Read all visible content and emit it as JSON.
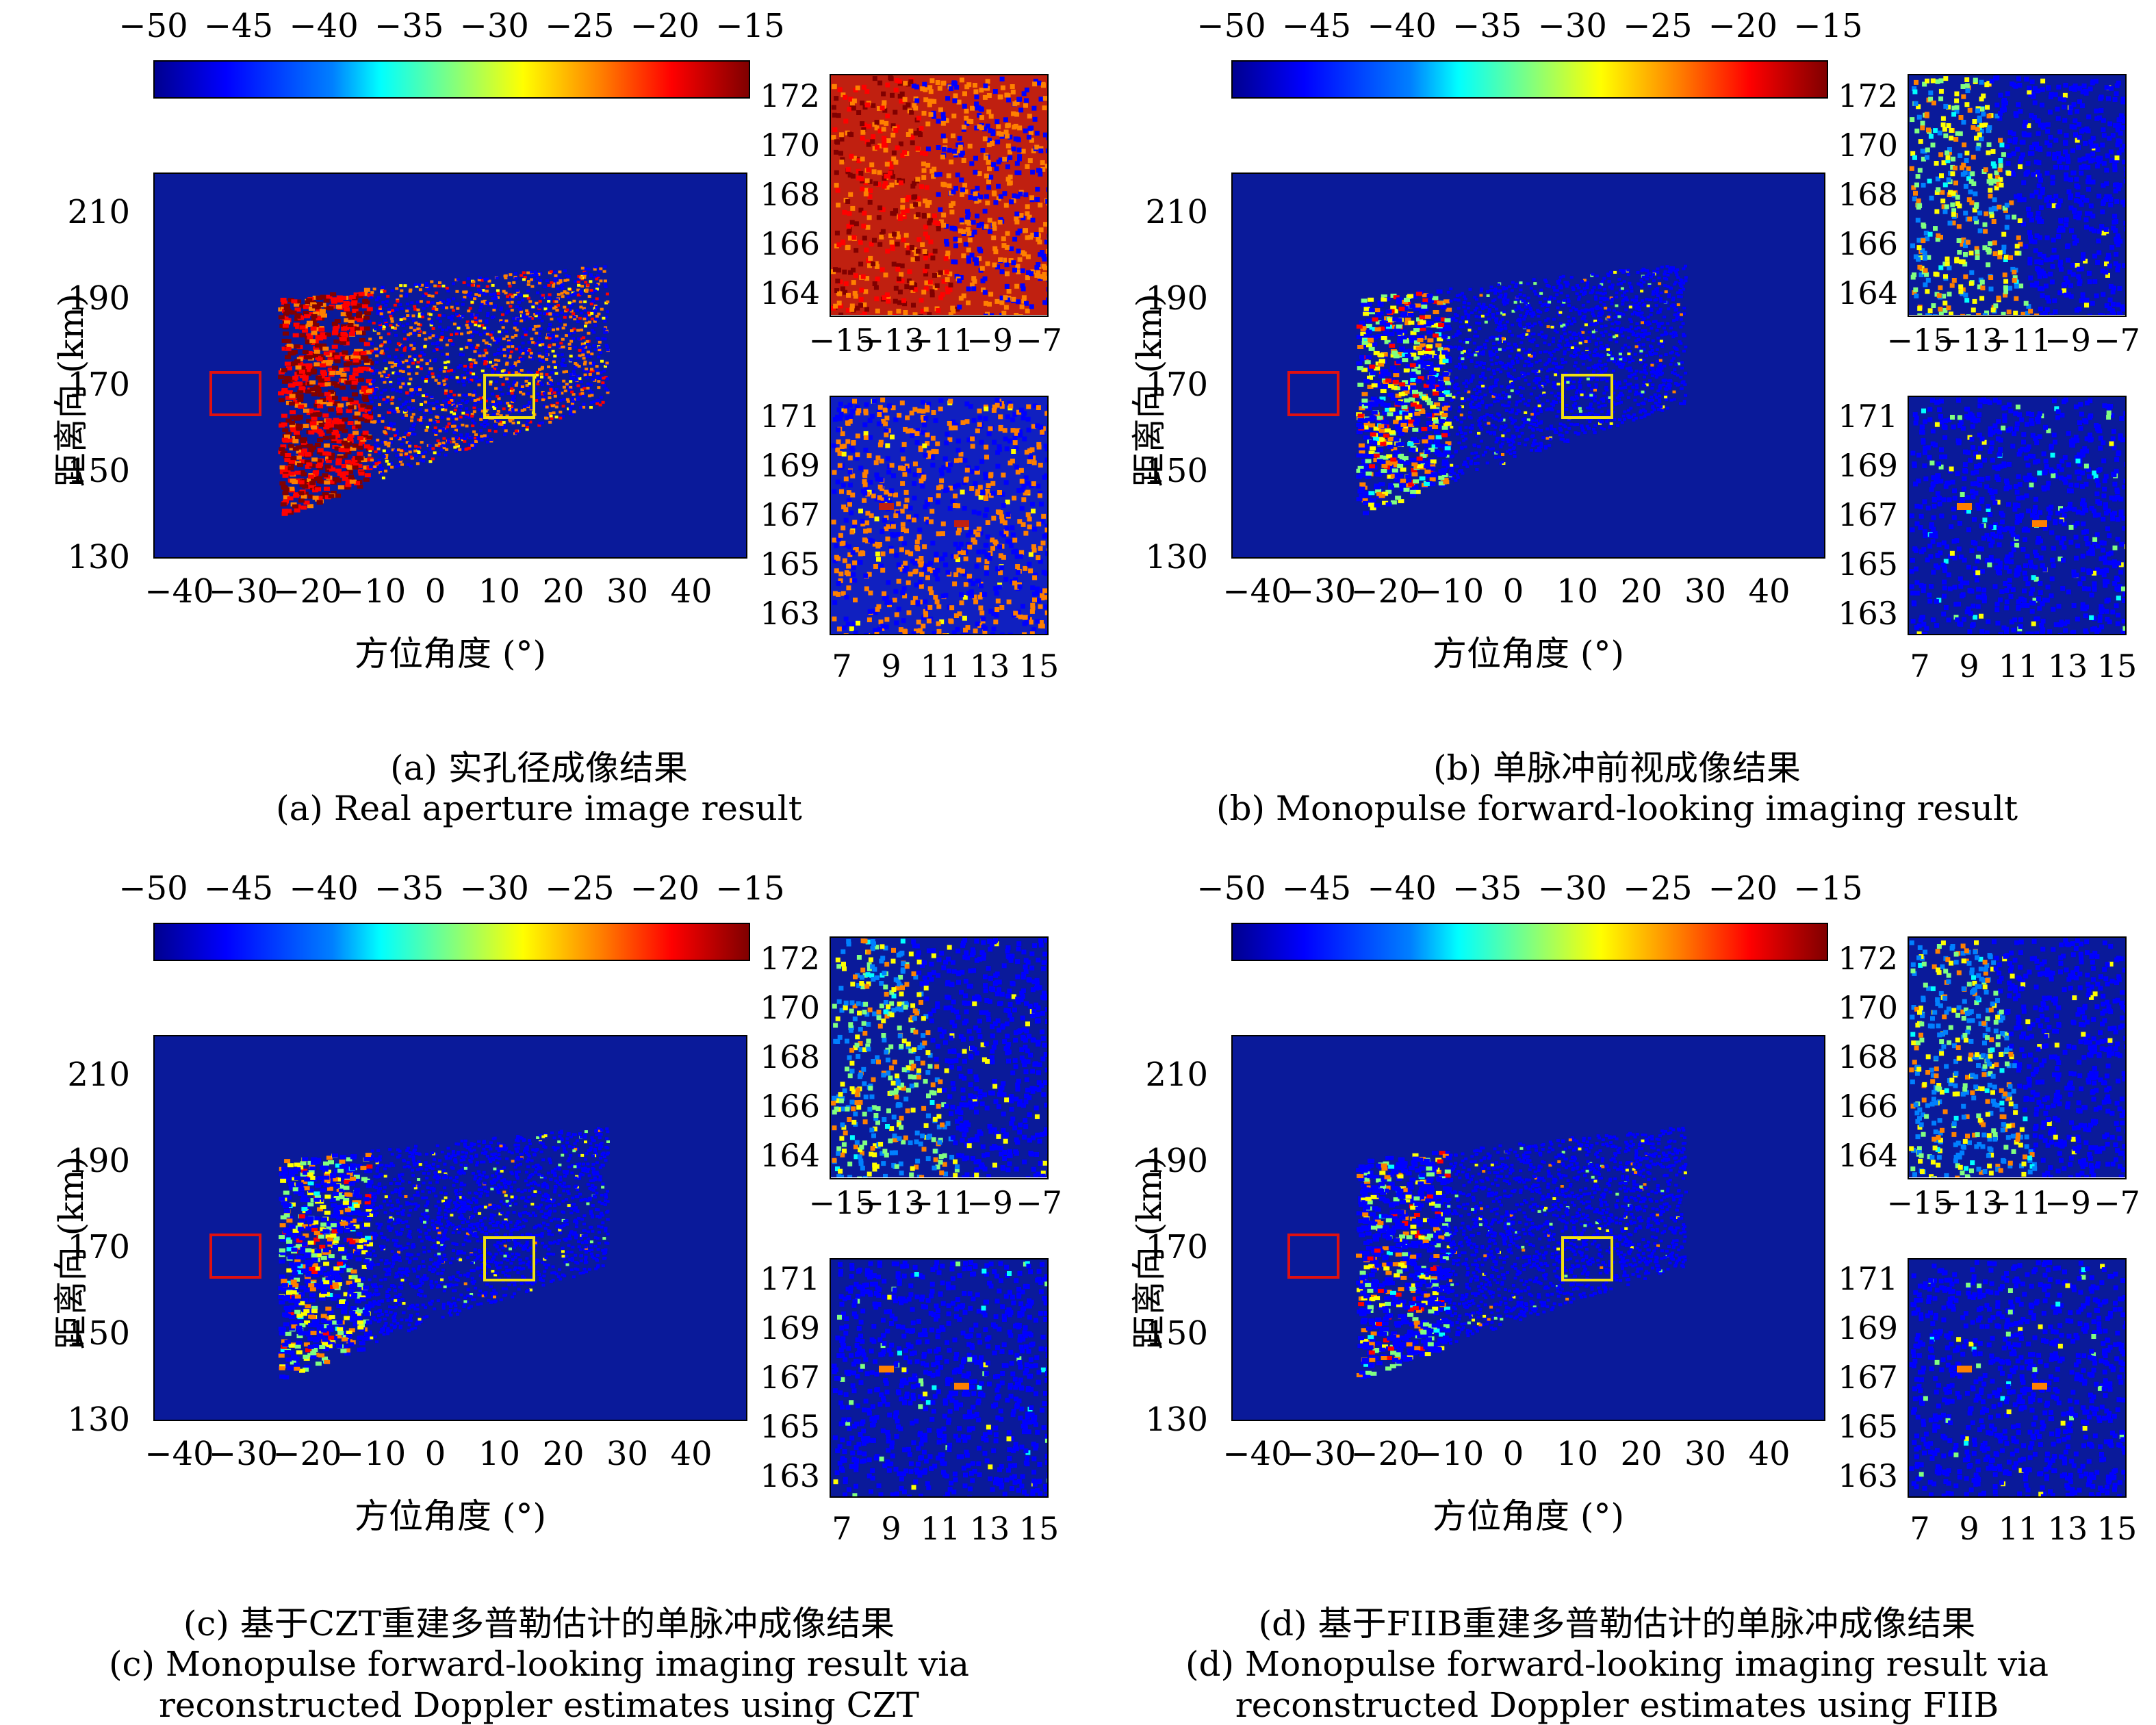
{
  "colorbar": {
    "ticks": [
      "−50",
      "−45",
      "−40",
      "−35",
      "−30",
      "−25",
      "−20",
      "−15"
    ],
    "colors": [
      "#00008f",
      "#0000ff",
      "#0080ff",
      "#00ffff",
      "#80ff80",
      "#ffff00",
      "#ff8000",
      "#ff0000",
      "#800000"
    ]
  },
  "main_axes": {
    "xlabel": "方位角度 (°)",
    "ylabel": "距离向 (km)",
    "xticks": [
      "−40",
      "−30",
      "−20",
      "−10",
      "0",
      "10",
      "20",
      "30",
      "40"
    ],
    "yticks": [
      "210",
      "190",
      "170",
      "150",
      "130"
    ]
  },
  "inset_top": {
    "xticks": [
      "−15",
      "−13",
      "−11",
      "−9",
      "−7"
    ],
    "yticks": [
      "172",
      "170",
      "168",
      "166",
      "164"
    ]
  },
  "inset_bottom": {
    "xticks": [
      "7",
      "9",
      "11",
      "13",
      "15"
    ],
    "yticks": [
      "171",
      "169",
      "167",
      "165",
      "163"
    ]
  },
  "panels": [
    {
      "caption_cn": "(a) 实孔径成像结果",
      "caption_en": "(a) Real aperture image result",
      "caption_en2": ""
    },
    {
      "caption_cn": "(b) 单脉冲前视成像结果",
      "caption_en": "(b) Monopulse forward-looking imaging result",
      "caption_en2": ""
    },
    {
      "caption_cn": "(c) 基于CZT重建多普勒估计的单脉冲成像结果",
      "caption_en": "(c) Monopulse forward-looking imaging result via",
      "caption_en2": "reconstructed Doppler estimates using CZT"
    },
    {
      "caption_cn": "(d) 基于FIIB重建多普勒估计的单脉冲成像结果",
      "caption_en": "(d) Monopulse forward-looking imaging result via",
      "caption_en2": "reconstructed Doppler estimates using FIIB"
    }
  ],
  "chart_data": [
    {
      "type": "heatmap",
      "title": "(a) 实孔径成像结果",
      "xlabel": "方位角度 (°)",
      "ylabel": "距离向 (km)",
      "xlim": [
        -45,
        45
      ],
      "ylim": [
        125,
        220
      ],
      "clim": [
        -50,
        -15
      ],
      "intensity": "high",
      "boxes": {
        "red": {
          "x": [
            -15,
            -7
          ],
          "y": [
            163,
            173
          ]
        },
        "yellow": {
          "x": [
            7,
            15
          ],
          "y": [
            163,
            172
          ]
        }
      }
    },
    {
      "type": "heatmap",
      "title": "(b) 单脉冲前视成像结果",
      "xlabel": "方位角度 (°)",
      "ylabel": "距离向 (km)",
      "xlim": [
        -45,
        45
      ],
      "ylim": [
        125,
        220
      ],
      "clim": [
        -50,
        -15
      ],
      "intensity": "medium",
      "boxes": {
        "red": {
          "x": [
            -15,
            -7
          ],
          "y": [
            163,
            173
          ]
        },
        "yellow": {
          "x": [
            7,
            15
          ],
          "y": [
            163,
            172
          ]
        }
      }
    },
    {
      "type": "heatmap",
      "title": "(c) 基于CZT重建多普勒估计的单脉冲成像结果",
      "xlabel": "方位角度 (°)",
      "ylabel": "距离向 (km)",
      "xlim": [
        -45,
        45
      ],
      "ylim": [
        125,
        220
      ],
      "clim": [
        -50,
        -15
      ],
      "intensity": "low",
      "boxes": {
        "red": {
          "x": [
            -15,
            -7
          ],
          "y": [
            163,
            173
          ]
        },
        "yellow": {
          "x": [
            7,
            15
          ],
          "y": [
            163,
            172
          ]
        }
      }
    },
    {
      "type": "heatmap",
      "title": "(d) 基于FIIB重建多普勒估计的单脉冲成像结果",
      "xlabel": "方位角度 (°)",
      "ylabel": "距离向 (km)",
      "xlim": [
        -45,
        45
      ],
      "ylim": [
        125,
        220
      ],
      "clim": [
        -50,
        -15
      ],
      "intensity": "lowest",
      "boxes": {
        "red": {
          "x": [
            -15,
            -7
          ],
          "y": [
            163,
            173
          ]
        },
        "yellow": {
          "x": [
            7,
            15
          ],
          "y": [
            163,
            172
          ]
        }
      }
    }
  ]
}
